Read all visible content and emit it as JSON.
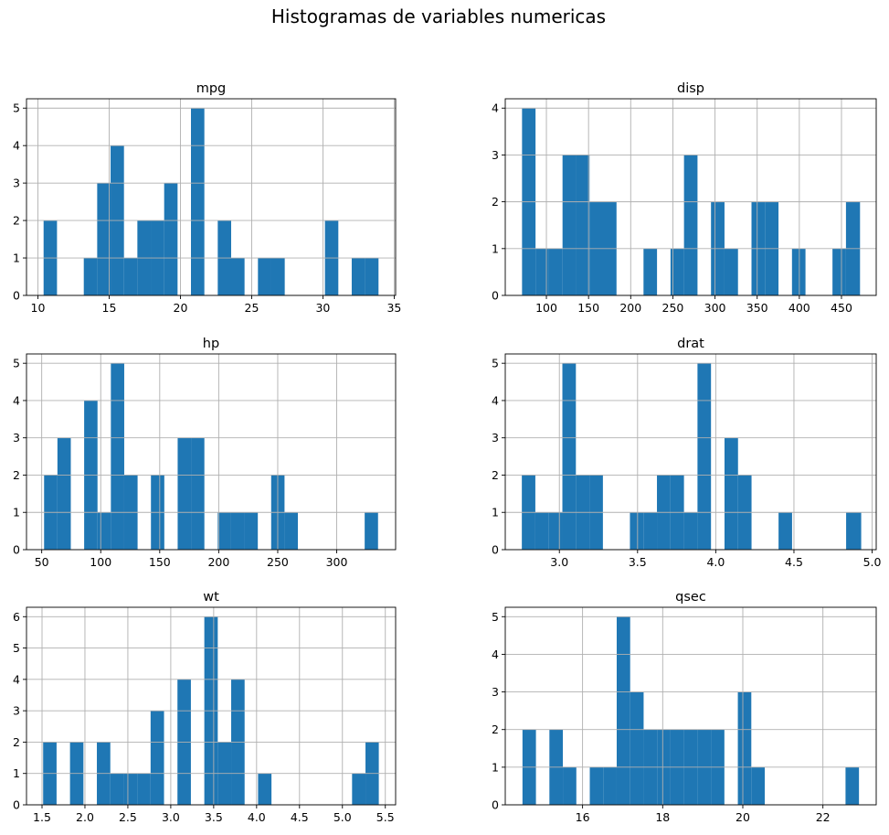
{
  "title": "Histogramas de variables numericas",
  "bar_color": "#1f77b4",
  "grid_color": "#b0b0b0",
  "chart_data": [
    {
      "type": "bar",
      "title": "mpg",
      "grid": true,
      "xlim": [
        9.2,
        35.1
      ],
      "ylim": [
        0,
        5.25
      ],
      "xticks": [
        10,
        15,
        20,
        25,
        30,
        35
      ],
      "yticks": [
        0,
        1,
        2,
        3,
        4,
        5
      ],
      "bin_edges": [
        10.4,
        11.34,
        12.28,
        13.22,
        14.16,
        15.1,
        16.04,
        16.98,
        17.92,
        18.86,
        19.8,
        20.74,
        21.68,
        22.62,
        23.56,
        24.5,
        25.44,
        26.38,
        27.32,
        28.26,
        29.2,
        30.14,
        31.08,
        32.02,
        32.96,
        33.9
      ],
      "counts": [
        2,
        0,
        0,
        1,
        3,
        4,
        1,
        2,
        2,
        3,
        0,
        5,
        0,
        2,
        1,
        0,
        1,
        1,
        0,
        0,
        0,
        2,
        0,
        1,
        1
      ]
    },
    {
      "type": "bar",
      "title": "disp",
      "grid": true,
      "xlim": [
        51.2,
        491.2
      ],
      "ylim": [
        0,
        4.2
      ],
      "xticks": [
        100,
        150,
        200,
        250,
        300,
        350,
        400,
        450
      ],
      "yticks": [
        0,
        1,
        2,
        3,
        4
      ],
      "bin_edges": [
        71.1,
        87.11,
        103.12,
        119.13,
        135.14,
        151.15,
        167.16,
        183.17,
        199.18,
        215.19,
        231.2,
        247.21,
        263.22,
        279.23,
        295.24,
        311.25,
        327.26,
        343.27,
        359.28,
        375.29,
        391.3,
        407.31,
        423.32,
        439.33,
        455.34,
        472.0
      ],
      "counts": [
        4,
        1,
        1,
        3,
        3,
        2,
        2,
        0,
        0,
        1,
        0,
        1,
        3,
        0,
        2,
        1,
        0,
        2,
        2,
        0,
        1,
        0,
        0,
        1,
        2
      ]
    },
    {
      "type": "bar",
      "title": "hp",
      "grid": true,
      "xlim": [
        37.1,
        349.9
      ],
      "ylim": [
        0,
        5.25
      ],
      "xticks": [
        50,
        100,
        150,
        200,
        250,
        300
      ],
      "yticks": [
        0,
        1,
        2,
        3,
        4,
        5
      ],
      "bin_edges": [
        52,
        63.32,
        74.64,
        85.96,
        97.28,
        108.6,
        119.92,
        131.24,
        142.56,
        153.88,
        165.2,
        176.52,
        187.84,
        199.16,
        210.48,
        221.8,
        233.12,
        244.44,
        255.76,
        267.08,
        278.4,
        289.72,
        301.04,
        312.36,
        323.68,
        335
      ],
      "counts": [
        2,
        3,
        0,
        4,
        1,
        5,
        2,
        0,
        2,
        0,
        3,
        3,
        0,
        1,
        1,
        1,
        0,
        2,
        1,
        0,
        0,
        0,
        0,
        0,
        1
      ]
    },
    {
      "type": "bar",
      "title": "drat",
      "grid": true,
      "xlim": [
        2.654,
        5.026
      ],
      "ylim": [
        0,
        5.25
      ],
      "xticks": [
        3.0,
        3.5,
        4.0,
        4.5,
        5.0
      ],
      "yticks": [
        0,
        1,
        2,
        3,
        4,
        5
      ],
      "bin_edges": [
        2.76,
        2.8464,
        2.9328,
        3.0192,
        3.1056,
        3.192,
        3.2784,
        3.3648,
        3.4512,
        3.5376,
        3.624,
        3.7104,
        3.7968,
        3.8832,
        3.9696,
        4.056,
        4.1424,
        4.2288,
        4.3152,
        4.4016,
        4.488,
        4.5744,
        4.6608,
        4.7472,
        4.8336,
        4.93
      ],
      "counts": [
        2,
        1,
        1,
        5,
        2,
        2,
        0,
        0,
        1,
        1,
        2,
        2,
        1,
        5,
        0,
        3,
        2,
        0,
        0,
        1,
        0,
        0,
        0,
        0,
        1
      ]
    },
    {
      "type": "bar",
      "title": "wt",
      "grid": true,
      "xlim": [
        1.319,
        5.62
      ],
      "ylim": [
        0,
        6.3
      ],
      "xticks": [
        1.5,
        2.0,
        2.5,
        3.0,
        3.5,
        4.0,
        4.5,
        5.0,
        5.5
      ],
      "yticks": [
        0,
        1,
        2,
        3,
        4,
        5,
        6
      ],
      "bin_edges": [
        1.513,
        1.6695,
        1.826,
        1.9825,
        2.139,
        2.2955,
        2.452,
        2.6085,
        2.765,
        2.9215,
        3.078,
        3.2345,
        3.391,
        3.5475,
        3.704,
        3.8605,
        4.017,
        4.1735,
        4.33,
        4.4865,
        4.643,
        4.7995,
        4.956,
        5.1125,
        5.269,
        5.424
      ],
      "counts": [
        2,
        0,
        2,
        0,
        2,
        1,
        1,
        1,
        3,
        0,
        4,
        0,
        6,
        2,
        4,
        0,
        1,
        0,
        0,
        0,
        0,
        0,
        0,
        1,
        2
      ]
    },
    {
      "type": "bar",
      "title": "qsec",
      "grid": true,
      "xlim": [
        14.07,
        23.33
      ],
      "ylim": [
        0,
        5.25
      ],
      "xticks": [
        16,
        18,
        20,
        22
      ],
      "yticks": [
        0,
        1,
        2,
        3,
        4,
        5
      ],
      "bin_edges": [
        14.5,
        14.836,
        15.172,
        15.508,
        15.844,
        16.18,
        16.516,
        16.852,
        17.188,
        17.524,
        17.86,
        18.196,
        18.532,
        18.868,
        19.204,
        19.54,
        19.876,
        20.212,
        20.548,
        20.884,
        21.22,
        21.556,
        21.892,
        22.228,
        22.564,
        22.9
      ],
      "counts": [
        2,
        0,
        2,
        1,
        0,
        1,
        1,
        5,
        3,
        2,
        2,
        2,
        2,
        2,
        2,
        0,
        3,
        1,
        0,
        0,
        0,
        0,
        0,
        0,
        1
      ]
    }
  ]
}
